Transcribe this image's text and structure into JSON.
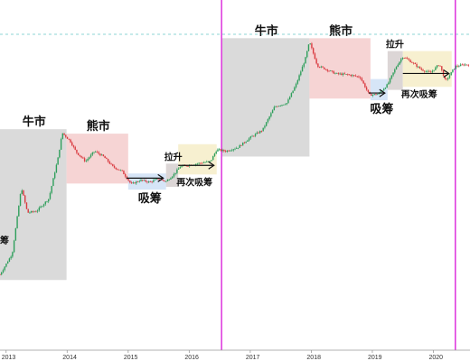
{
  "chart_data": {
    "type": "candlestick",
    "title": "",
    "xlabel": "",
    "ylabel": "",
    "x_axis": {
      "tick_labels": [
        "2013",
        "2014",
        "2015",
        "2016",
        "2017",
        "2018",
        "2019",
        "2020"
      ]
    },
    "y_scale": "log",
    "grid": false,
    "legend": "none",
    "colors": {
      "bull": "#d4d4d4",
      "bear": "#f5cccc",
      "accumulate": "#cfe1f6",
      "pump": "#d6cfcf",
      "reaccumulate": "#f6edc8",
      "halving_line": "#dd33dd",
      "dashed_line": "#8ed6d6",
      "candle_up": "#2e9e5b",
      "candle_down": "#d9393f",
      "arrow": "#111111"
    },
    "halvings": [
      "2016.53",
      "2020.36"
    ],
    "regions": [
      {
        "label": "牛市",
        "kind": "bull",
        "from": "2012.9",
        "to": "2013.99"
      },
      {
        "label": "熊市",
        "kind": "bear",
        "from": "2013.99",
        "to": "2015.0"
      },
      {
        "label": "吸筹",
        "kind": "accumulate",
        "from": "2015.0",
        "to": "2015.62"
      },
      {
        "label": "拉升",
        "kind": "pump",
        "from": "2015.62",
        "to": "2015.82"
      },
      {
        "label": "再次吸筹",
        "kind": "reaccumulate",
        "from": "2015.82",
        "to": "2016.45"
      },
      {
        "label": "牛市",
        "kind": "bull",
        "from": "2016.53",
        "to": "2017.97"
      },
      {
        "label": "熊市",
        "kind": "bear",
        "from": "2017.97",
        "to": "2018.97"
      },
      {
        "label": "吸筹",
        "kind": "accumulate",
        "from": "2018.97",
        "to": "2019.25"
      },
      {
        "label": "拉升",
        "kind": "pump",
        "from": "2019.25",
        "to": "2019.5"
      },
      {
        "label": "再次吸筹",
        "kind": "reaccumulate",
        "from": "2019.5",
        "to": "2020.3"
      }
    ],
    "extra_labels": [
      "吸筹"
    ],
    "price_path": [
      [
        "2012.9",
        13
      ],
      [
        "2013.1",
        25
      ],
      [
        "2013.25",
        200
      ],
      [
        "2013.35",
        90
      ],
      [
        "2013.5",
        95
      ],
      [
        "2013.7",
        140
      ],
      [
        "2013.85",
        500
      ],
      [
        "2013.92",
        1100
      ],
      [
        "2014.05",
        850
      ],
      [
        "2014.15",
        600
      ],
      [
        "2014.3",
        450
      ],
      [
        "2014.45",
        620
      ],
      [
        "2014.6",
        520
      ],
      [
        "2014.75",
        380
      ],
      [
        "2014.9",
        330
      ],
      [
        "2015.05",
        220
      ],
      [
        "2015.2",
        250
      ],
      [
        "2015.35",
        235
      ],
      [
        "2015.5",
        260
      ],
      [
        "2015.62",
        240
      ],
      [
        "2015.75",
        300
      ],
      [
        "2015.85",
        380
      ],
      [
        "2016.0",
        400
      ],
      [
        "2016.2",
        430
      ],
      [
        "2016.35",
        450
      ],
      [
        "2016.45",
        650
      ],
      [
        "2016.6",
        620
      ],
      [
        "2016.8",
        700
      ],
      [
        "2017.0",
        950
      ],
      [
        "2017.2",
        1200
      ],
      [
        "2017.4",
        2500
      ],
      [
        "2017.6",
        2800
      ],
      [
        "2017.75",
        5000
      ],
      [
        "2017.9",
        11000
      ],
      [
        "2017.97",
        19000
      ],
      [
        "2018.1",
        9000
      ],
      [
        "2018.25",
        8000
      ],
      [
        "2018.4",
        7000
      ],
      [
        "2018.6",
        6800
      ],
      [
        "2018.8",
        6300
      ],
      [
        "2018.95",
        3600
      ],
      [
        "2019.1",
        3700
      ],
      [
        "2019.25",
        5000
      ],
      [
        "2019.4",
        9000
      ],
      [
        "2019.5",
        12000
      ],
      [
        "2019.65",
        10000
      ],
      [
        "2019.8",
        8000
      ],
      [
        "2019.95",
        7200
      ],
      [
        "2020.1",
        9500
      ],
      [
        "2020.2",
        5500
      ],
      [
        "2020.36",
        8800
      ],
      [
        "2020.5",
        9300
      ]
    ]
  }
}
